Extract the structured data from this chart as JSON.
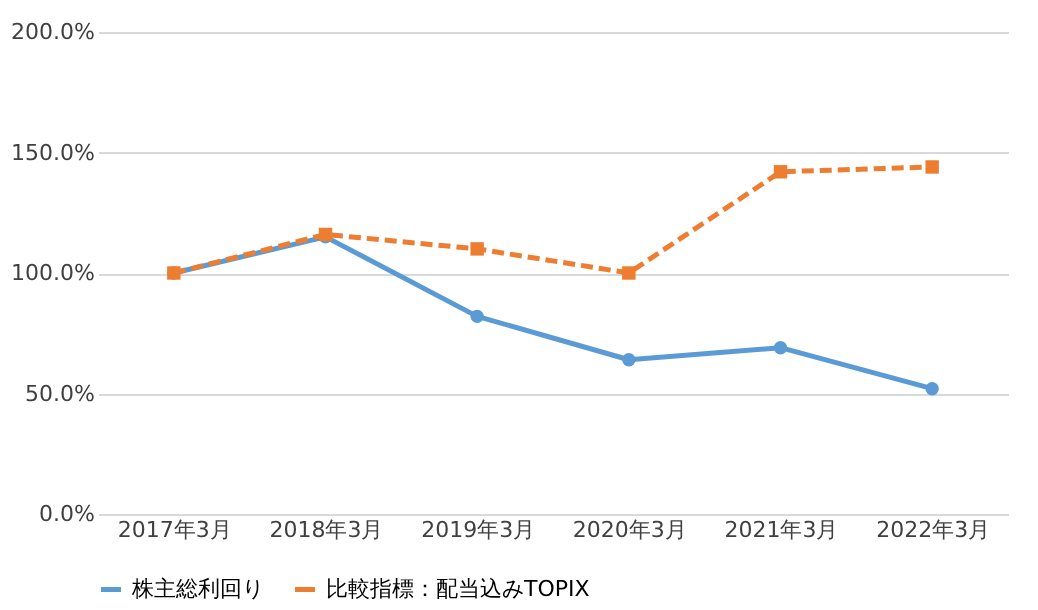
{
  "chart_data": {
    "type": "line",
    "categories": [
      "2017年3月",
      "2018年3月",
      "2019年3月",
      "2020年3月",
      "2021年3月",
      "2022年3月"
    ],
    "series": [
      {
        "name": "株主総利回り",
        "color": "#5b9bd5",
        "values": [
          100,
          115,
          82,
          64,
          69,
          52
        ],
        "marker": "circle",
        "line_style": "solid"
      },
      {
        "name": "比較指標：配当込みTOPIX",
        "color": "#ed7d31",
        "values": [
          100,
          116,
          110,
          100,
          142,
          144
        ],
        "marker": "square",
        "line_style": "dashed"
      }
    ],
    "ylim": [
      0,
      200
    ],
    "yticks": [
      {
        "value": 0,
        "label": "0.0%"
      },
      {
        "value": 50,
        "label": "50.0%"
      },
      {
        "value": 100,
        "label": "100.0%"
      },
      {
        "value": 150,
        "label": "150.0%"
      },
      {
        "value": 200,
        "label": "200.0%"
      }
    ],
    "grid": "y",
    "legend": "bottom"
  }
}
